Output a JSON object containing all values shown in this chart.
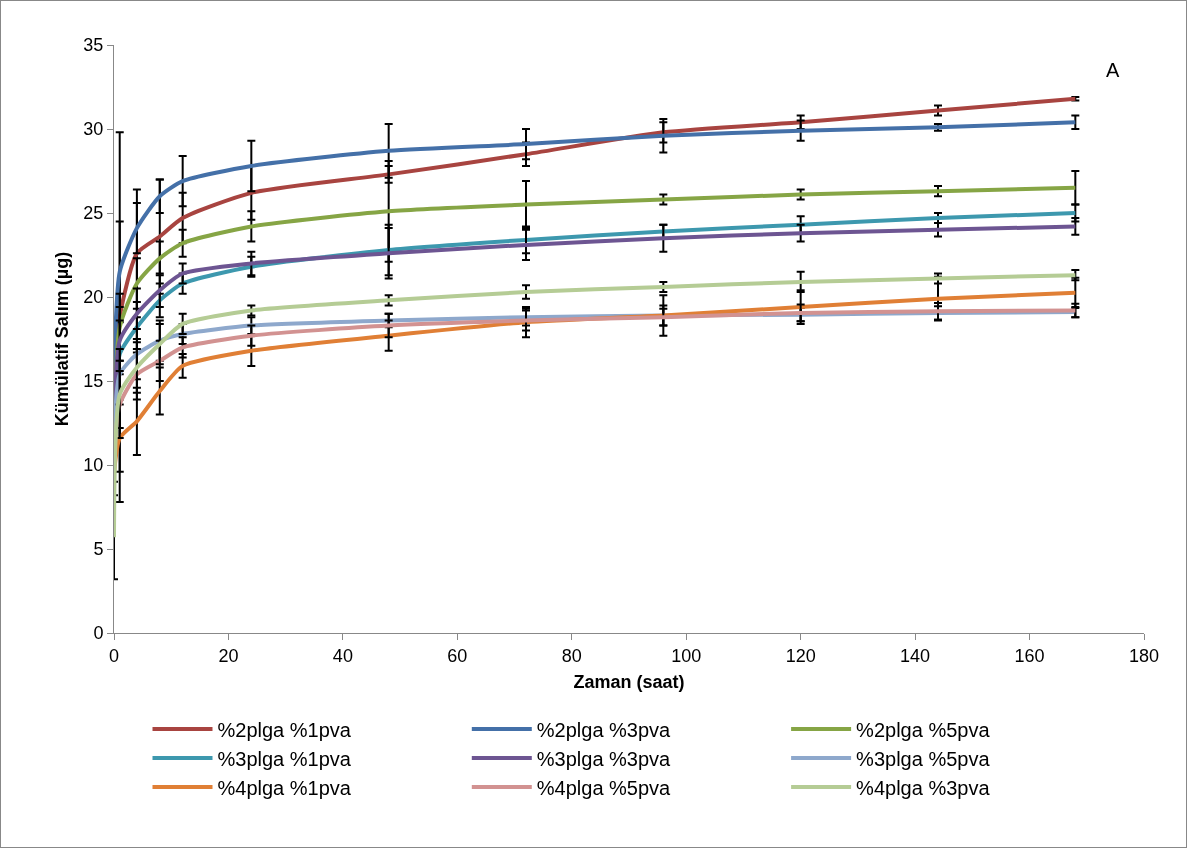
{
  "chart_data": {
    "type": "line",
    "xlabel": "Zaman (saat)",
    "ylabel": "Kümülatif Salım (µg)",
    "annotations": [
      "A"
    ],
    "x": [
      0,
      1,
      4,
      8,
      12,
      24,
      48,
      72,
      96,
      120,
      144,
      168
    ],
    "xlim": [
      0,
      180
    ],
    "xticks": [
      0,
      20,
      40,
      60,
      80,
      100,
      120,
      140,
      160,
      180
    ],
    "ylim": [
      0,
      35
    ],
    "yticks": [
      0,
      5,
      10,
      15,
      20,
      25,
      30,
      35
    ],
    "grid": false,
    "legend": "bottom",
    "marker": "none",
    "line_style": "solid",
    "series": [
      {
        "name": "%2plga %1pva",
        "color": "#a84440",
        "values": [
          13,
          18.8,
          22.6,
          23.6,
          24.7,
          26.2,
          27.3,
          28.5,
          29.8,
          30.4,
          31.1,
          31.8
        ],
        "errors": [
          null,
          11,
          3.8,
          3.4,
          1.5,
          1.6,
          0.5,
          0.7,
          0.6,
          0.4,
          0.3,
          0.1
        ]
      },
      {
        "name": "%2plga %3pva",
        "color": "#4470a8",
        "values": [
          15,
          21.5,
          24.1,
          26,
          26.9,
          27.8,
          28.7,
          29.1,
          29.6,
          29.9,
          30.1,
          30.4
        ],
        "errors": [
          null,
          3,
          1.5,
          1,
          1.5,
          1.5,
          1.6,
          0.9,
          1,
          0.6,
          0.2,
          0.4
        ]
      },
      {
        "name": "%2plga %5pva",
        "color": "#86a545",
        "values": [
          12,
          18.2,
          20.8,
          22.3,
          23.2,
          24.2,
          25.1,
          25.5,
          25.8,
          26.1,
          26.3,
          26.5
        ],
        "errors": [
          null,
          2,
          1.5,
          1,
          0.8,
          0.9,
          3,
          1.4,
          0.3,
          0.3,
          0.3,
          1
        ]
      },
      {
        "name": "%3plga %1pva",
        "color": "#3d98ae",
        "values": [
          11.5,
          16.6,
          18.2,
          19.8,
          20.8,
          21.8,
          22.8,
          23.4,
          23.9,
          24.3,
          24.7,
          25
        ],
        "errors": [
          null,
          2,
          1.5,
          1,
          0.6,
          0.6,
          1.5,
          0.8,
          0.4,
          0.5,
          0.3,
          0.5
        ]
      },
      {
        "name": "%3plga %3pva",
        "color": "#6d5592",
        "values": [
          12,
          17.4,
          19,
          20.4,
          21.4,
          22,
          22.6,
          23.1,
          23.5,
          23.8,
          24,
          24.2
        ],
        "errors": [
          null,
          2,
          1.5,
          1,
          0.6,
          0.7,
          1.5,
          0.9,
          0.8,
          0.5,
          0.4,
          0.5
        ]
      },
      {
        "name": "%3plga %5pva",
        "color": "#8ea8cc",
        "values": [
          11,
          15.4,
          16.6,
          17.4,
          17.8,
          18.3,
          18.6,
          18.8,
          18.9,
          18.95,
          19.05,
          19.1
        ],
        "errors": [
          2,
          1.5,
          1.5,
          1.2,
          0.6,
          0.5,
          0.4,
          0.5,
          1.2,
          0.4,
          0.4,
          0.3
        ]
      },
      {
        "name": "%4plga %1pva",
        "color": "#e07f35",
        "values": [
          9.5,
          11.6,
          12.6,
          14.4,
          15.9,
          16.8,
          17.7,
          18.5,
          18.9,
          19.4,
          19.9,
          20.25
        ],
        "errors": [
          null,
          2,
          2,
          1.4,
          0.7,
          0.9,
          0.9,
          0.9,
          0.6,
          1,
          1.3,
          0.9
        ]
      },
      {
        "name": "%4plga %5pva",
        "color": "#d29291",
        "values": [
          10.5,
          13.6,
          15.4,
          16.2,
          17,
          17.7,
          18.3,
          18.6,
          18.8,
          19.05,
          19.15,
          19.2
        ],
        "errors": [
          null,
          2,
          1.5,
          1.2,
          0.6,
          0.6,
          0.7,
          0.6,
          0.5,
          0.5,
          0.5,
          0.4
        ]
      },
      {
        "name": "%4plga %3pva",
        "color": "#b5cc95",
        "values": [
          5.7,
          14.2,
          15.8,
          17.2,
          18.4,
          19.2,
          19.8,
          20.3,
          20.6,
          20.9,
          21.1,
          21.3
        ],
        "errors": [
          2.5,
          2,
          1.5,
          1.2,
          0.6,
          0.3,
          0.3,
          0.4,
          0.3,
          0.6,
          0.3,
          0.3
        ]
      }
    ]
  }
}
